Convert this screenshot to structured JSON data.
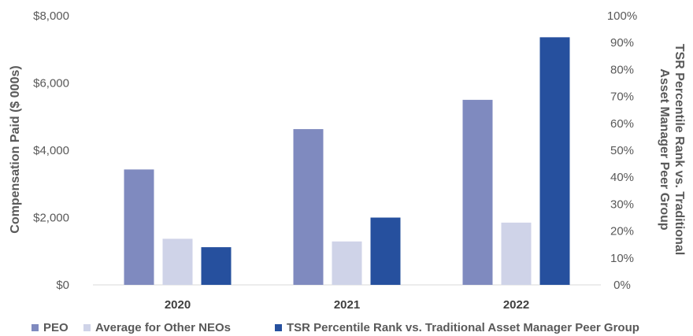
{
  "chart_data": {
    "type": "bar",
    "categories": [
      "2020",
      "2021",
      "2022"
    ],
    "series": [
      {
        "name": "PEO",
        "axis": "left",
        "color": "#7f8abf",
        "values": [
          3430,
          4630,
          5500
        ]
      },
      {
        "name": "Average for Other NEOs",
        "axis": "left",
        "color": "#cfd3e8",
        "values": [
          1370,
          1290,
          1850
        ]
      },
      {
        "name": "TSR Percentile Rank vs. Traditional Asset Manager Peer Group",
        "axis": "right",
        "color": "#26509e",
        "values": [
          14,
          25,
          92
        ]
      }
    ],
    "ylabel": "Compensation Paid ($ 000s)",
    "ylabel_right": "TSR Percentile Rank vs. Traditional Asset Manager Peer Group",
    "ylabel_right_lines": [
      "TSR Percentile Rank vs. Traditional",
      "Asset Manager Peer Group"
    ],
    "ylim": [
      0,
      8000
    ],
    "ylim_right": [
      0,
      100
    ],
    "yticks": [
      "$0",
      "$2,000",
      "$4,000",
      "$6,000",
      "$8,000"
    ],
    "yticks_right": [
      "0%",
      "10%",
      "20%",
      "30%",
      "40%",
      "50%",
      "60%",
      "70%",
      "80%",
      "90%",
      "100%"
    ],
    "grid": false,
    "legend_position": "bottom"
  }
}
